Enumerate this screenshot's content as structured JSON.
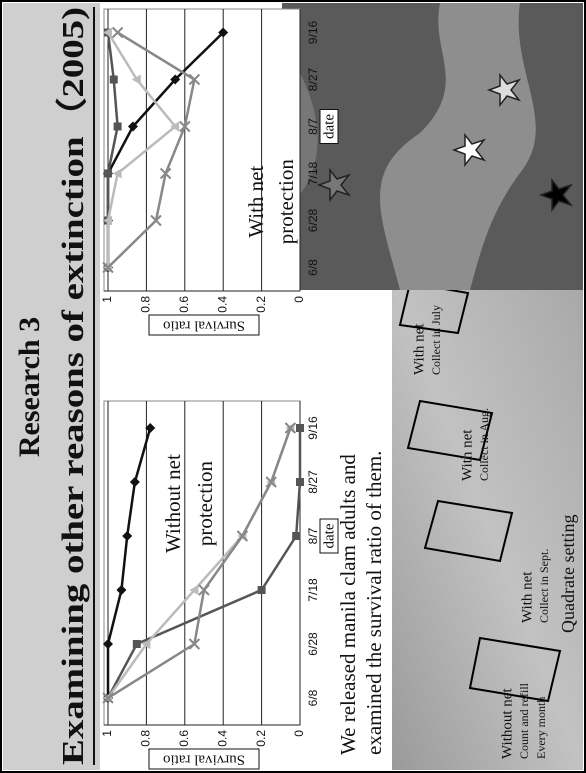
{
  "slide": {
    "title": "Research 3",
    "subtitle": "Examining other reasons of extinction（2005)",
    "description": [
      "We released manila clam adults and",
      "examined the survival ratio of them."
    ],
    "photo_labels": [
      {
        "lines": [
          "Without net",
          "Count and refill",
          "Every month"
        ]
      },
      {
        "lines": [
          "With net",
          "Collect in Sept."
        ]
      },
      {
        "lines": [
          "With net",
          "Collect in Aug."
        ]
      },
      {
        "lines": [
          "With net",
          "Collect in July"
        ]
      }
    ],
    "photo_caption": "Quadrate setting"
  },
  "chart_data": [
    {
      "type": "line",
      "categories": [
        "6/8",
        "6/28",
        "7/18",
        "8/7",
        "8/27",
        "9/16"
      ],
      "x_label": "date",
      "y_label": "Survival ratio",
      "annotation": [
        "Without net",
        "protection"
      ],
      "ylim": [
        0,
        1
      ],
      "yticks": [
        0,
        0.2,
        0.4,
        0.6,
        0.8,
        1
      ],
      "grid": true,
      "series": [
        {
          "color": "#111111",
          "marker": "diamond",
          "values": [
            1,
            1,
            0.93,
            0.9,
            0.86,
            0.78
          ]
        },
        {
          "color": "#555555",
          "marker": "square",
          "values": [
            1,
            0.85,
            0.2,
            0.02,
            0,
            0
          ]
        },
        {
          "color": "#bbbbbb",
          "marker": "triangle",
          "values": [
            1,
            0.8,
            0.55,
            0.3,
            0.15,
            0.05
          ]
        },
        {
          "color": "#888888",
          "marker": "x",
          "values": [
            1,
            0.55,
            0.5,
            0.3,
            0.15,
            0.05
          ]
        }
      ]
    },
    {
      "type": "line",
      "categories": [
        "6/8",
        "6/28",
        "7/18",
        "8/7",
        "8/27",
        "9/16"
      ],
      "x_label": "date",
      "y_label": "Survival ratio",
      "annotation": [
        "With net",
        "protection"
      ],
      "ylim": [
        0,
        1
      ],
      "yticks": [
        0,
        0.2,
        0.4,
        0.6,
        0.8,
        1
      ],
      "grid": true,
      "series": [
        {
          "color": "#111111",
          "marker": "diamond",
          "values": [
            1,
            1,
            1,
            0.87,
            0.65,
            0.4
          ]
        },
        {
          "color": "#555555",
          "marker": "square",
          "values": [
            1,
            1,
            1,
            0.95,
            0.97,
            1
          ]
        },
        {
          "color": "#bbbbbb",
          "marker": "triangle",
          "values": [
            1,
            1,
            0.95,
            0.65,
            0.85,
            1
          ]
        },
        {
          "color": "#888888",
          "marker": "x",
          "values": [
            1,
            0.75,
            0.7,
            0.6,
            0.55,
            0.95
          ]
        }
      ]
    }
  ]
}
